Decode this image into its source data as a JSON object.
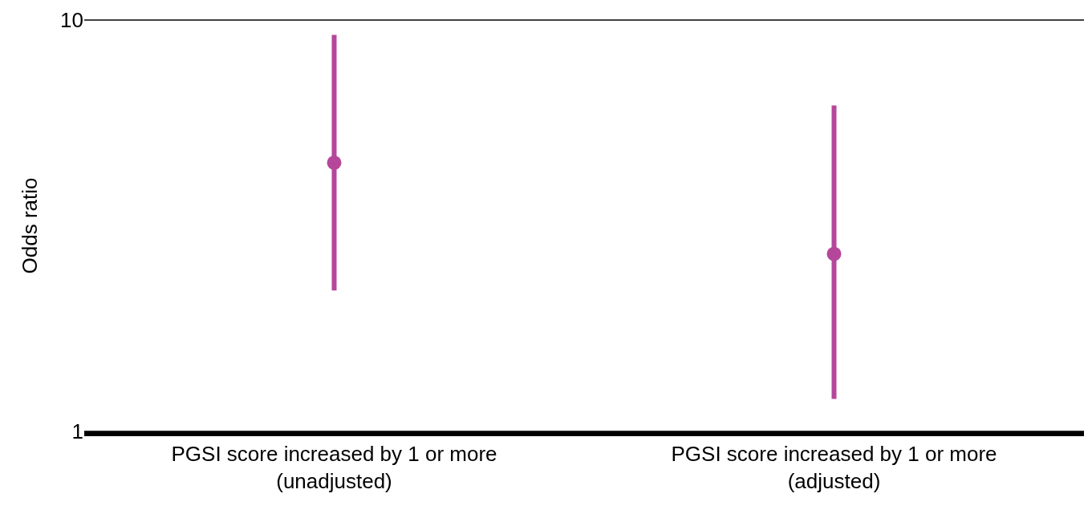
{
  "chart_data": {
    "type": "scatter",
    "ylabel": "Odds ratio",
    "categories": [
      "PGSI score increased by 1 or more\n(unadjusted)",
      "PGSI score increased by 1 or more\n(adjusted)"
    ],
    "series": [
      {
        "color": "#b5479b",
        "values": [
          4.5,
          2.7
        ],
        "errors": [
          [
            2.2,
            9.2
          ],
          [
            1.2,
            6.2
          ]
        ]
      }
    ],
    "log": "y",
    "ylim": [
      1,
      10
    ],
    "yticks": [
      1,
      10
    ],
    "grid": "y",
    "marker": "circle"
  }
}
